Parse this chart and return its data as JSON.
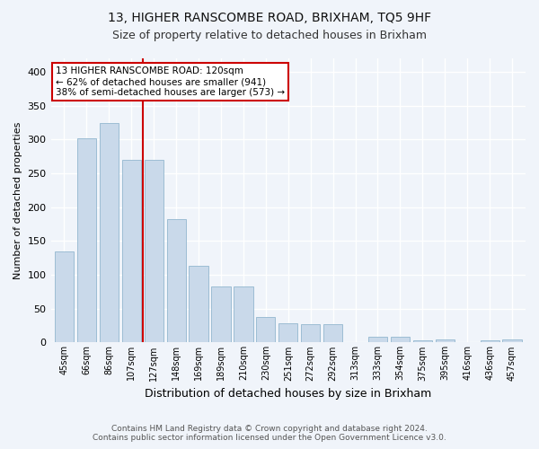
{
  "title": "13, HIGHER RANSCOMBE ROAD, BRIXHAM, TQ5 9HF",
  "subtitle": "Size of property relative to detached houses in Brixham",
  "xlabel": "Distribution of detached houses by size in Brixham",
  "ylabel": "Number of detached properties",
  "categories": [
    "45sqm",
    "66sqm",
    "86sqm",
    "107sqm",
    "127sqm",
    "148sqm",
    "169sqm",
    "189sqm",
    "210sqm",
    "230sqm",
    "251sqm",
    "272sqm",
    "292sqm",
    "313sqm",
    "333sqm",
    "354sqm",
    "375sqm",
    "395sqm",
    "416sqm",
    "436sqm",
    "457sqm"
  ],
  "values": [
    134,
    302,
    325,
    270,
    270,
    183,
    113,
    83,
    83,
    38,
    28,
    27,
    27,
    0,
    9,
    9,
    3,
    5,
    0,
    3,
    5
  ],
  "bar_color": "#c9d9ea",
  "bar_edge_color": "#9dbdd4",
  "reference_line_color": "#cc0000",
  "annotation_text": "13 HIGHER RANSCOMBE ROAD: 120sqm\n← 62% of detached houses are smaller (941)\n38% of semi-detached houses are larger (573) →",
  "annotation_box_color": "#ffffff",
  "annotation_box_edge": "#cc0000",
  "ylim": [
    0,
    420
  ],
  "yticks": [
    0,
    50,
    100,
    150,
    200,
    250,
    300,
    350,
    400
  ],
  "footer_line1": "Contains HM Land Registry data © Crown copyright and database right 2024.",
  "footer_line2": "Contains public sector information licensed under the Open Government Licence v3.0.",
  "bg_color": "#f0f4fa",
  "plot_bg_color": "#f0f4fa",
  "title_fontsize": 10,
  "subtitle_fontsize": 9,
  "grid_color": "#ffffff"
}
